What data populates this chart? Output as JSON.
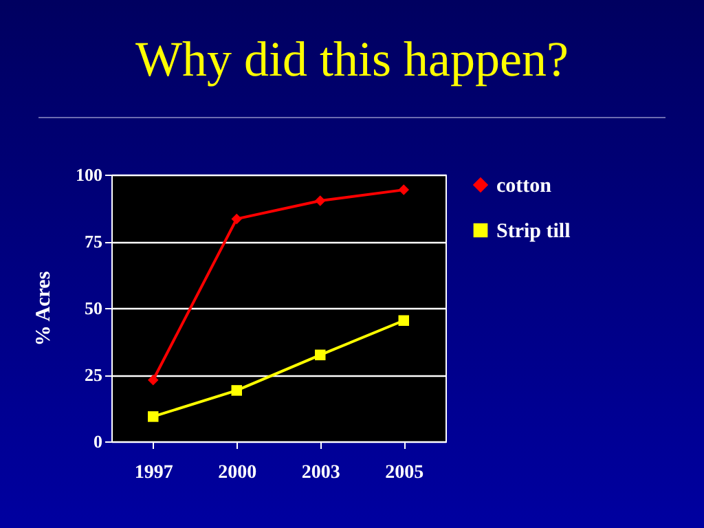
{
  "chart_data": {
    "type": "line",
    "title": "Why did this happen?",
    "ylabel": "% Acres",
    "categories": [
      "1997",
      "2000",
      "2003",
      "2005"
    ],
    "series": [
      {
        "name": "cotton",
        "color": "#ff0000",
        "marker": "diamond",
        "values": [
          23,
          83.4,
          90.2,
          94.3
        ]
      },
      {
        "name": "Strip till",
        "color": "#ffff00",
        "marker": "square",
        "values": [
          9.3,
          19.1,
          32.4,
          45.3
        ]
      }
    ],
    "ylim": [
      0,
      100
    ],
    "yticks": [
      0,
      25,
      50,
      75,
      100
    ],
    "grid": "y",
    "legend": "right"
  }
}
